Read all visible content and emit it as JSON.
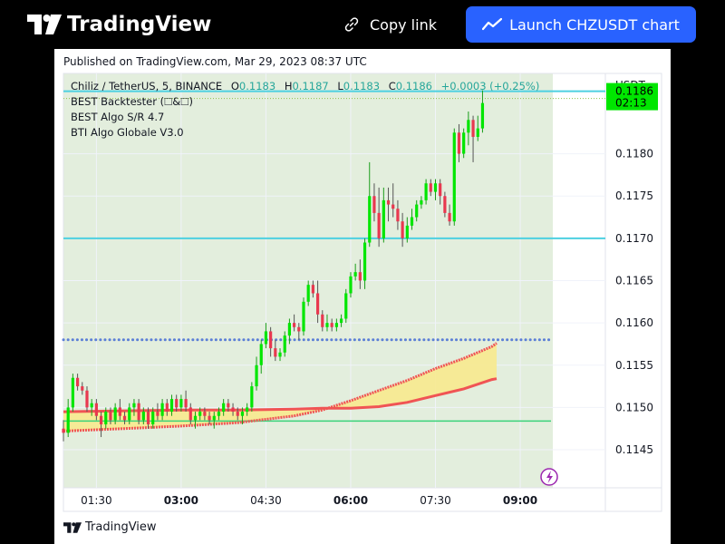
{
  "topbar": {
    "brand": "TradingView",
    "copy_link_label": "Copy link",
    "launch_label": "Launch CHZUSDT chart"
  },
  "card": {
    "published": "Published on TradingView.com, Mar 29, 2023 08:37 UTC",
    "footer_brand": "TradingView"
  },
  "legend": {
    "symbol": "Chiliz / TetherUS, 5, BINANCE",
    "o_label": "O",
    "o_value": "0.1183",
    "h_label": "H",
    "h_value": "0.1187",
    "l_label": "L",
    "l_value": "0.1183",
    "c_label": "C",
    "c_value": "0.1186",
    "change": "+0.0003 (+0.25%)",
    "indicators": [
      "BEST Backtester (🞎&🞎)",
      "BEST Algo S/R 4.7",
      "BTI Algo Globale V3.0"
    ]
  },
  "colors": {
    "up": "#00e600",
    "down": "#e8384f",
    "brand_blue": "#2962ff",
    "sr_line": "#4dd0e1",
    "dotted_line": "#5c7fd6",
    "ema": "#f05454",
    "fill": "#f7e98e",
    "bg_shade": "#e3eedd",
    "price_tag": "#00e600"
  },
  "chart_data": {
    "type": "candlestick",
    "title": "Chiliz / TetherUS, 5, BINANCE",
    "currency_label": "USDT",
    "x_tick_labels": [
      "01:30",
      "03:00",
      "04:30",
      "06:00",
      "07:30",
      "09:00"
    ],
    "x_tick_times": [
      "01:30",
      "03:00",
      "04:30",
      "06:00",
      "07:30",
      "09:00"
    ],
    "y_tick_labels": [
      "0.1145",
      "0.1150",
      "0.1155",
      "0.1160",
      "0.1165",
      "0.1170",
      "0.1175",
      "0.1180"
    ],
    "y_ticks": [
      0.1145,
      0.115,
      0.1155,
      0.116,
      0.1165,
      0.117,
      0.1175,
      0.118
    ],
    "ylim": [
      0.11405,
      0.11895
    ],
    "time_range": [
      "00:55",
      "09:25"
    ],
    "last_price": "0.1186",
    "countdown": "02:13",
    "levels": {
      "resistance_top": 0.11874,
      "resistance_mid": 0.117,
      "dotted_support": 0.1158,
      "green_support": 0.11484
    },
    "ema_fast": [
      [
        "00:55",
        0.11472
      ],
      [
        "02:00",
        0.11475
      ],
      [
        "03:00",
        0.11478
      ],
      [
        "04:00",
        0.11482
      ],
      [
        "05:00",
        0.1149
      ],
      [
        "05:30",
        0.11497
      ],
      [
        "06:00",
        0.11508
      ],
      [
        "06:30",
        0.1152
      ],
      [
        "07:00",
        0.11532
      ],
      [
        "07:30",
        0.11546
      ],
      [
        "08:00",
        0.11558
      ],
      [
        "08:30",
        0.11572
      ],
      [
        "08:35",
        0.11576
      ]
    ],
    "ema_slow": [
      [
        "00:55",
        0.11495
      ],
      [
        "02:00",
        0.11496
      ],
      [
        "03:00",
        0.11497
      ],
      [
        "04:00",
        0.11497
      ],
      [
        "05:00",
        0.11498
      ],
      [
        "05:30",
        0.11499
      ],
      [
        "06:00",
        0.11499
      ],
      [
        "06:30",
        0.11501
      ],
      [
        "07:00",
        0.11506
      ],
      [
        "07:30",
        0.11514
      ],
      [
        "08:00",
        0.11522
      ],
      [
        "08:30",
        0.11533
      ],
      [
        "08:35",
        0.11534
      ]
    ],
    "candles": [
      {
        "t": "00:55",
        "o": 0.11475,
        "h": 0.11485,
        "l": 0.1146,
        "c": 0.1147
      },
      {
        "t": "01:00",
        "o": 0.1147,
        "h": 0.1151,
        "l": 0.11465,
        "c": 0.115
      },
      {
        "t": "01:05",
        "o": 0.115,
        "h": 0.1154,
        "l": 0.11495,
        "c": 0.11535
      },
      {
        "t": "01:10",
        "o": 0.11535,
        "h": 0.1154,
        "l": 0.1152,
        "c": 0.11525
      },
      {
        "t": "01:15",
        "o": 0.11525,
        "h": 0.1153,
        "l": 0.11515,
        "c": 0.1152
      },
      {
        "t": "01:20",
        "o": 0.1152,
        "h": 0.11525,
        "l": 0.11495,
        "c": 0.115
      },
      {
        "t": "01:25",
        "o": 0.115,
        "h": 0.1151,
        "l": 0.1149,
        "c": 0.11505
      },
      {
        "t": "01:30",
        "o": 0.11505,
        "h": 0.1151,
        "l": 0.11485,
        "c": 0.1149
      },
      {
        "t": "01:35",
        "o": 0.1149,
        "h": 0.11495,
        "l": 0.11465,
        "c": 0.1148
      },
      {
        "t": "01:40",
        "o": 0.1148,
        "h": 0.115,
        "l": 0.11475,
        "c": 0.11495
      },
      {
        "t": "01:45",
        "o": 0.11495,
        "h": 0.115,
        "l": 0.1148,
        "c": 0.11485
      },
      {
        "t": "01:50",
        "o": 0.11485,
        "h": 0.11505,
        "l": 0.1148,
        "c": 0.115
      },
      {
        "t": "01:55",
        "o": 0.115,
        "h": 0.1151,
        "l": 0.11485,
        "c": 0.1149
      },
      {
        "t": "02:00",
        "o": 0.1149,
        "h": 0.11495,
        "l": 0.1148,
        "c": 0.11485
      },
      {
        "t": "02:05",
        "o": 0.11485,
        "h": 0.11505,
        "l": 0.1148,
        "c": 0.115
      },
      {
        "t": "02:10",
        "o": 0.115,
        "h": 0.1151,
        "l": 0.1149,
        "c": 0.11505
      },
      {
        "t": "02:15",
        "o": 0.11505,
        "h": 0.1151,
        "l": 0.1148,
        "c": 0.11485
      },
      {
        "t": "02:20",
        "o": 0.11485,
        "h": 0.115,
        "l": 0.1148,
        "c": 0.11495
      },
      {
        "t": "02:25",
        "o": 0.11495,
        "h": 0.115,
        "l": 0.11475,
        "c": 0.1148
      },
      {
        "t": "02:30",
        "o": 0.1148,
        "h": 0.115,
        "l": 0.11475,
        "c": 0.11495
      },
      {
        "t": "02:35",
        "o": 0.11495,
        "h": 0.11505,
        "l": 0.11485,
        "c": 0.1149
      },
      {
        "t": "02:40",
        "o": 0.1149,
        "h": 0.1151,
        "l": 0.11485,
        "c": 0.11505
      },
      {
        "t": "02:45",
        "o": 0.11505,
        "h": 0.1151,
        "l": 0.1149,
        "c": 0.11495
      },
      {
        "t": "02:50",
        "o": 0.11495,
        "h": 0.11515,
        "l": 0.1149,
        "c": 0.1151
      },
      {
        "t": "02:55",
        "o": 0.1151,
        "h": 0.11515,
        "l": 0.11495,
        "c": 0.115
      },
      {
        "t": "03:00",
        "o": 0.115,
        "h": 0.11515,
        "l": 0.11495,
        "c": 0.1151
      },
      {
        "t": "03:05",
        "o": 0.1151,
        "h": 0.1152,
        "l": 0.11495,
        "c": 0.115
      },
      {
        "t": "03:10",
        "o": 0.115,
        "h": 0.11505,
        "l": 0.1148,
        "c": 0.11485
      },
      {
        "t": "03:15",
        "o": 0.11485,
        "h": 0.11495,
        "l": 0.11475,
        "c": 0.1149
      },
      {
        "t": "03:20",
        "o": 0.1149,
        "h": 0.115,
        "l": 0.11485,
        "c": 0.11495
      },
      {
        "t": "03:25",
        "o": 0.11495,
        "h": 0.115,
        "l": 0.11485,
        "c": 0.1149
      },
      {
        "t": "03:30",
        "o": 0.1149,
        "h": 0.11495,
        "l": 0.1148,
        "c": 0.11485
      },
      {
        "t": "03:35",
        "o": 0.11485,
        "h": 0.11495,
        "l": 0.11475,
        "c": 0.1149
      },
      {
        "t": "03:40",
        "o": 0.1149,
        "h": 0.115,
        "l": 0.11485,
        "c": 0.11495
      },
      {
        "t": "03:45",
        "o": 0.11495,
        "h": 0.1151,
        "l": 0.1149,
        "c": 0.11505
      },
      {
        "t": "03:50",
        "o": 0.11505,
        "h": 0.1151,
        "l": 0.11495,
        "c": 0.115
      },
      {
        "t": "03:55",
        "o": 0.115,
        "h": 0.11505,
        "l": 0.1149,
        "c": 0.11495
      },
      {
        "t": "04:00",
        "o": 0.11495,
        "h": 0.115,
        "l": 0.11485,
        "c": 0.1149
      },
      {
        "t": "04:05",
        "o": 0.1149,
        "h": 0.115,
        "l": 0.1148,
        "c": 0.11495
      },
      {
        "t": "04:10",
        "o": 0.11495,
        "h": 0.11505,
        "l": 0.1149,
        "c": 0.115
      },
      {
        "t": "04:15",
        "o": 0.115,
        "h": 0.1153,
        "l": 0.11495,
        "c": 0.11525
      },
      {
        "t": "04:20",
        "o": 0.11525,
        "h": 0.1156,
        "l": 0.1152,
        "c": 0.1155
      },
      {
        "t": "04:25",
        "o": 0.1155,
        "h": 0.1158,
        "l": 0.1154,
        "c": 0.11575
      },
      {
        "t": "04:30",
        "o": 0.11575,
        "h": 0.116,
        "l": 0.1157,
        "c": 0.1159
      },
      {
        "t": "04:35",
        "o": 0.1159,
        "h": 0.11595,
        "l": 0.1156,
        "c": 0.1157
      },
      {
        "t": "04:40",
        "o": 0.1157,
        "h": 0.1158,
        "l": 0.11555,
        "c": 0.1156
      },
      {
        "t": "04:45",
        "o": 0.1156,
        "h": 0.1157,
        "l": 0.11555,
        "c": 0.11565
      },
      {
        "t": "04:50",
        "o": 0.11565,
        "h": 0.1159,
        "l": 0.1156,
        "c": 0.11585
      },
      {
        "t": "04:55",
        "o": 0.11585,
        "h": 0.11605,
        "l": 0.11575,
        "c": 0.116
      },
      {
        "t": "05:00",
        "o": 0.116,
        "h": 0.1161,
        "l": 0.1159,
        "c": 0.11595
      },
      {
        "t": "05:05",
        "o": 0.11595,
        "h": 0.116,
        "l": 0.1158,
        "c": 0.1159
      },
      {
        "t": "05:10",
        "o": 0.1159,
        "h": 0.1163,
        "l": 0.11585,
        "c": 0.11625
      },
      {
        "t": "05:15",
        "o": 0.11625,
        "h": 0.1165,
        "l": 0.1162,
        "c": 0.11645
      },
      {
        "t": "05:20",
        "o": 0.11645,
        "h": 0.1165,
        "l": 0.1163,
        "c": 0.11635
      },
      {
        "t": "05:25",
        "o": 0.11635,
        "h": 0.1165,
        "l": 0.116,
        "c": 0.1161
      },
      {
        "t": "05:30",
        "o": 0.1161,
        "h": 0.11615,
        "l": 0.1159,
        "c": 0.11595
      },
      {
        "t": "05:35",
        "o": 0.11595,
        "h": 0.1161,
        "l": 0.1159,
        "c": 0.116
      },
      {
        "t": "05:40",
        "o": 0.116,
        "h": 0.11605,
        "l": 0.1159,
        "c": 0.11595
      },
      {
        "t": "05:45",
        "o": 0.11595,
        "h": 0.11605,
        "l": 0.1159,
        "c": 0.116
      },
      {
        "t": "05:50",
        "o": 0.116,
        "h": 0.1161,
        "l": 0.11595,
        "c": 0.11605
      },
      {
        "t": "05:55",
        "o": 0.11605,
        "h": 0.1164,
        "l": 0.116,
        "c": 0.11635
      },
      {
        "t": "06:00",
        "o": 0.11635,
        "h": 0.1166,
        "l": 0.1163,
        "c": 0.11655
      },
      {
        "t": "06:05",
        "o": 0.11655,
        "h": 0.1167,
        "l": 0.1165,
        "c": 0.1166
      },
      {
        "t": "06:10",
        "o": 0.1166,
        "h": 0.11675,
        "l": 0.1164,
        "c": 0.1165
      },
      {
        "t": "06:15",
        "o": 0.1165,
        "h": 0.117,
        "l": 0.1164,
        "c": 0.11695
      },
      {
        "t": "06:20",
        "o": 0.11695,
        "h": 0.1179,
        "l": 0.1169,
        "c": 0.1175
      },
      {
        "t": "06:25",
        "o": 0.1175,
        "h": 0.11765,
        "l": 0.1172,
        "c": 0.1173
      },
      {
        "t": "06:30",
        "o": 0.1173,
        "h": 0.1176,
        "l": 0.1169,
        "c": 0.117
      },
      {
        "t": "06:35",
        "o": 0.117,
        "h": 0.1176,
        "l": 0.11695,
        "c": 0.11745
      },
      {
        "t": "06:40",
        "o": 0.11745,
        "h": 0.1176,
        "l": 0.1172,
        "c": 0.1174
      },
      {
        "t": "06:45",
        "o": 0.1174,
        "h": 0.11765,
        "l": 0.11725,
        "c": 0.11735
      },
      {
        "t": "06:50",
        "o": 0.11735,
        "h": 0.11745,
        "l": 0.1171,
        "c": 0.1172
      },
      {
        "t": "06:55",
        "o": 0.1172,
        "h": 0.1173,
        "l": 0.1169,
        "c": 0.117
      },
      {
        "t": "07:00",
        "o": 0.117,
        "h": 0.11725,
        "l": 0.11695,
        "c": 0.11715
      },
      {
        "t": "07:05",
        "o": 0.11715,
        "h": 0.11735,
        "l": 0.1171,
        "c": 0.11725
      },
      {
        "t": "07:10",
        "o": 0.11725,
        "h": 0.11745,
        "l": 0.1172,
        "c": 0.1174
      },
      {
        "t": "07:15",
        "o": 0.1174,
        "h": 0.1175,
        "l": 0.11735,
        "c": 0.11745
      },
      {
        "t": "07:20",
        "o": 0.11745,
        "h": 0.1177,
        "l": 0.1174,
        "c": 0.11765
      },
      {
        "t": "07:25",
        "o": 0.11765,
        "h": 0.1177,
        "l": 0.1175,
        "c": 0.11755
      },
      {
        "t": "07:30",
        "o": 0.11755,
        "h": 0.1177,
        "l": 0.11745,
        "c": 0.11765
      },
      {
        "t": "07:35",
        "o": 0.11765,
        "h": 0.1177,
        "l": 0.1174,
        "c": 0.1175
      },
      {
        "t": "07:40",
        "o": 0.1175,
        "h": 0.11755,
        "l": 0.11725,
        "c": 0.1173
      },
      {
        "t": "07:45",
        "o": 0.1173,
        "h": 0.1174,
        "l": 0.11715,
        "c": 0.1172
      },
      {
        "t": "07:50",
        "o": 0.1172,
        "h": 0.1183,
        "l": 0.11715,
        "c": 0.11825
      },
      {
        "t": "07:55",
        "o": 0.11825,
        "h": 0.11835,
        "l": 0.1179,
        "c": 0.118
      },
      {
        "t": "08:00",
        "o": 0.118,
        "h": 0.1183,
        "l": 0.11795,
        "c": 0.11825
      },
      {
        "t": "08:05",
        "o": 0.11825,
        "h": 0.1185,
        "l": 0.1181,
        "c": 0.1184
      },
      {
        "t": "08:10",
        "o": 0.1184,
        "h": 0.11845,
        "l": 0.1179,
        "c": 0.1182
      },
      {
        "t": "08:15",
        "o": 0.1182,
        "h": 0.11845,
        "l": 0.11815,
        "c": 0.1183
      },
      {
        "t": "08:20",
        "o": 0.1183,
        "h": 0.11875,
        "l": 0.11825,
        "c": 0.1186
      }
    ]
  }
}
